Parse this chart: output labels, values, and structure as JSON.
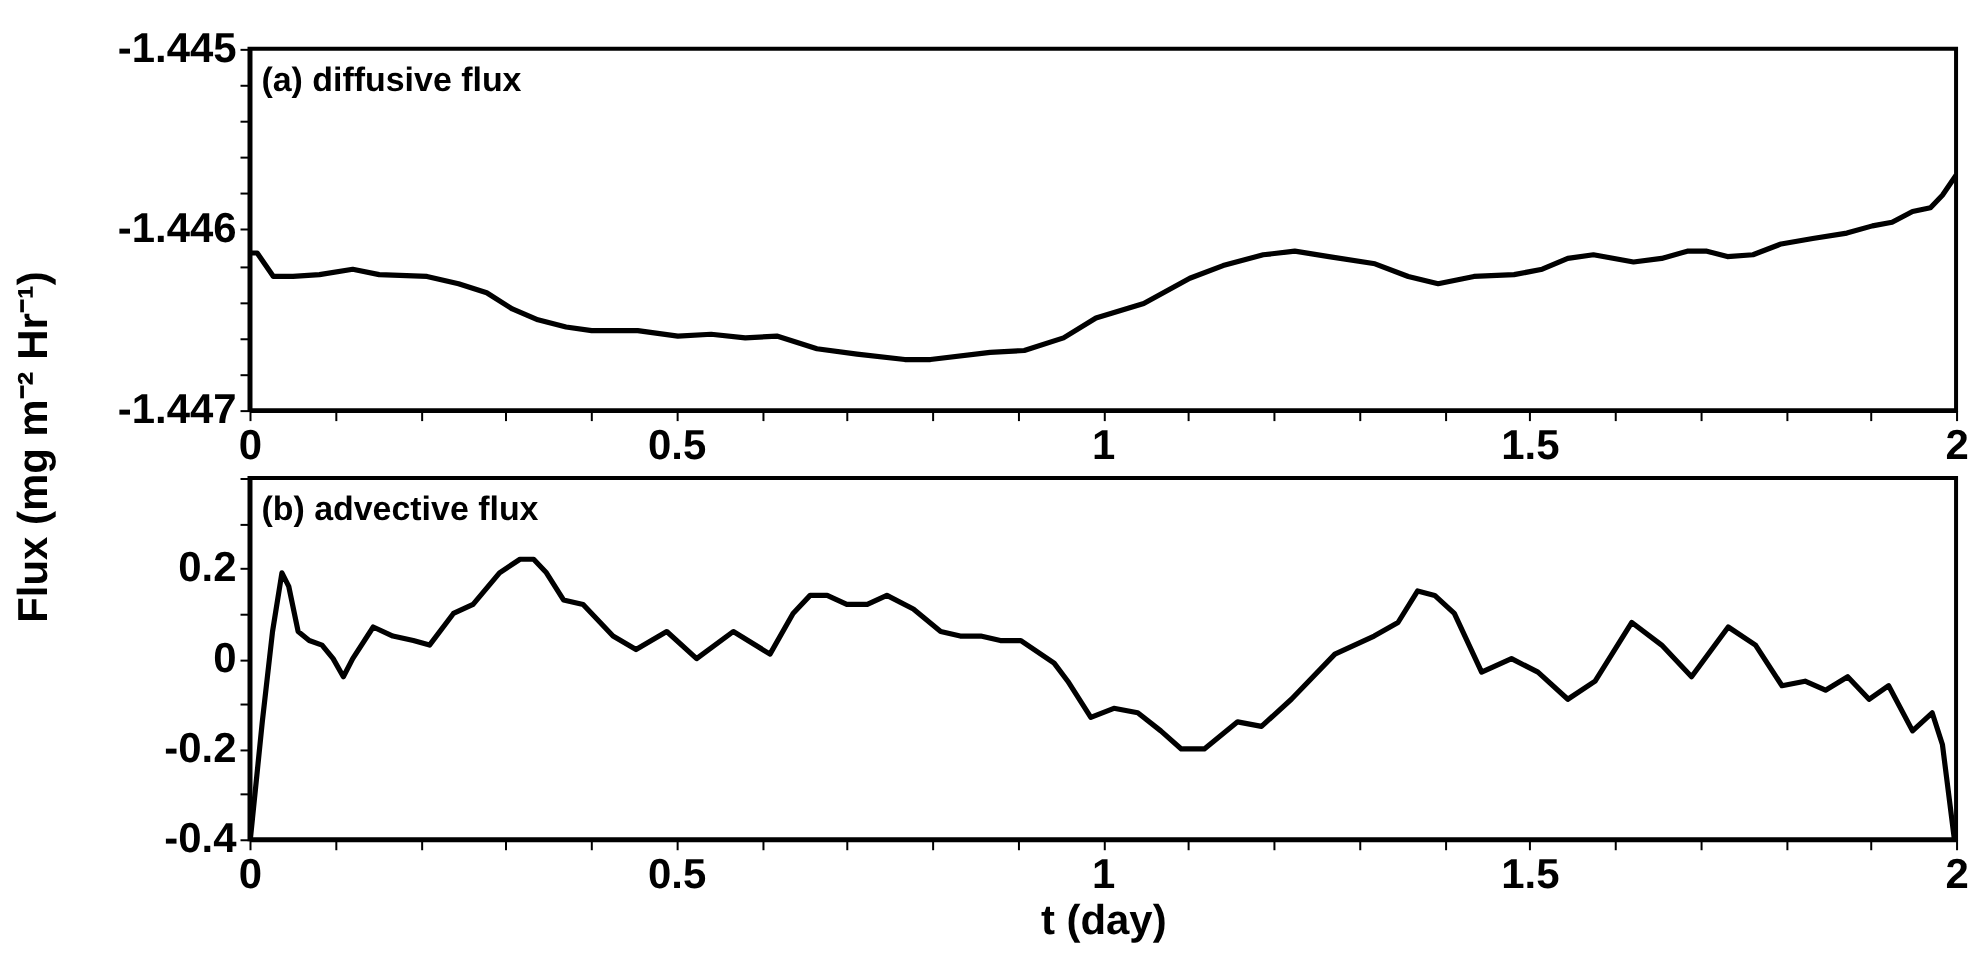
{
  "chart_data": [
    {
      "type": "line",
      "ylabel": "Flux (mg m⁻² Hr⁻¹)",
      "annotations": [
        "(a) diffusive flux"
      ],
      "xlim": [
        0,
        2
      ],
      "ylim": [
        -1.447,
        -1.445
      ],
      "xticks": [
        0,
        {
          "value": 0.1,
          "label": null
        },
        {
          "value": 0.2,
          "label": null
        },
        {
          "value": 0.3,
          "label": null
        },
        {
          "value": 0.4,
          "label": null
        },
        0.5,
        {
          "value": 0.6,
          "label": null
        },
        {
          "value": 0.7,
          "label": null
        },
        {
          "value": 0.8,
          "label": null
        },
        {
          "value": 0.9,
          "label": null
        },
        1,
        {
          "value": 1.1,
          "label": null
        },
        {
          "value": 1.2,
          "label": null
        },
        {
          "value": 1.3,
          "label": null
        },
        {
          "value": 1.4,
          "label": null
        },
        1.5,
        {
          "value": 1.6,
          "label": null
        },
        {
          "value": 1.7,
          "label": null
        },
        {
          "value": 1.8,
          "label": null
        },
        {
          "value": 1.9,
          "label": null
        },
        2
      ],
      "yticks": [
        -1.447,
        {
          "value": -1.4468,
          "label": null
        },
        {
          "value": -1.4466,
          "label": null
        },
        {
          "value": -1.4464,
          "label": null
        },
        {
          "value": -1.4462,
          "label": null
        },
        -1.446,
        {
          "value": -1.4458,
          "label": null
        },
        {
          "value": -1.4456,
          "label": null
        },
        {
          "value": -1.4454,
          "label": null
        },
        {
          "value": -1.4452,
          "label": null
        },
        -1.445
      ],
      "x": [
        0,
        0.009,
        0.028,
        0.051,
        0.082,
        0.121,
        0.152,
        0.208,
        0.245,
        0.278,
        0.308,
        0.338,
        0.371,
        0.401,
        0.455,
        0.502,
        0.541,
        0.581,
        0.618,
        0.665,
        0.712,
        0.768,
        0.798,
        0.868,
        0.908,
        0.954,
        0.992,
        1.048,
        1.102,
        1.141,
        1.188,
        1.225,
        1.265,
        1.319,
        1.358,
        1.393,
        1.435,
        1.482,
        1.515,
        1.545,
        1.575,
        1.622,
        1.655,
        1.685,
        1.708,
        1.732,
        1.762,
        1.795,
        1.832,
        1.872,
        1.902,
        1.925,
        1.949,
        1.97,
        1.984,
        2.0
      ],
      "series": [
        {
          "color": "#000000",
          "values": [
            -1.44613,
            -1.44613,
            -1.44626,
            -1.44626,
            -1.44625,
            -1.44622,
            -1.44625,
            -1.44626,
            -1.4463,
            -1.44635,
            -1.44644,
            -1.4465,
            -1.44654,
            -1.44656,
            -1.44656,
            -1.44659,
            -1.44658,
            -1.4466,
            -1.44659,
            -1.44666,
            -1.44669,
            -1.44672,
            -1.44672,
            -1.44668,
            -1.44667,
            -1.4466,
            -1.44649,
            -1.44641,
            -1.44627,
            -1.4462,
            -1.44614,
            -1.44612,
            -1.44615,
            -1.44619,
            -1.44626,
            -1.4463,
            -1.44626,
            -1.44625,
            -1.44622,
            -1.44616,
            -1.44614,
            -1.44618,
            -1.44616,
            -1.44612,
            -1.44612,
            -1.44615,
            -1.44614,
            -1.44608,
            -1.44605,
            -1.44602,
            -1.44598,
            -1.44596,
            -1.4459,
            -1.44588,
            -1.44581,
            -1.4457
          ]
        }
      ]
    },
    {
      "type": "line",
      "xlabel": "t (day)",
      "annotations": [
        "(b) advective flux"
      ],
      "xlim": [
        0,
        2
      ],
      "ylim": [
        -0.4,
        0.4
      ],
      "xticks": [
        0,
        {
          "value": 0.1,
          "label": null
        },
        {
          "value": 0.2,
          "label": null
        },
        {
          "value": 0.3,
          "label": null
        },
        {
          "value": 0.4,
          "label": null
        },
        0.5,
        {
          "value": 0.6,
          "label": null
        },
        {
          "value": 0.7,
          "label": null
        },
        {
          "value": 0.8,
          "label": null
        },
        {
          "value": 0.9,
          "label": null
        },
        1,
        {
          "value": 1.1,
          "label": null
        },
        {
          "value": 1.2,
          "label": null
        },
        {
          "value": 1.3,
          "label": null
        },
        {
          "value": 1.4,
          "label": null
        },
        1.5,
        {
          "value": 1.6,
          "label": null
        },
        {
          "value": 1.7,
          "label": null
        },
        {
          "value": 1.8,
          "label": null
        },
        {
          "value": 1.9,
          "label": null
        },
        2
      ],
      "yticks": [
        -0.4,
        {
          "value": -0.3,
          "label": null
        },
        -0.2,
        {
          "value": -0.1,
          "label": null
        },
        0,
        {
          "value": 0.1,
          "label": null
        },
        0.2,
        {
          "value": 0.3,
          "label": null
        },
        {
          "value": 0.4,
          "label": null
        }
      ],
      "x": [
        0.001,
        0.015,
        0.027,
        0.038,
        0.046,
        0.057,
        0.07,
        0.085,
        0.098,
        0.11,
        0.121,
        0.145,
        0.168,
        0.192,
        0.211,
        0.239,
        0.262,
        0.293,
        0.317,
        0.333,
        0.348,
        0.368,
        0.391,
        0.426,
        0.453,
        0.489,
        0.524,
        0.567,
        0.61,
        0.637,
        0.657,
        0.677,
        0.7,
        0.724,
        0.747,
        0.778,
        0.81,
        0.833,
        0.857,
        0.88,
        0.904,
        0.943,
        0.959,
        0.986,
        1.013,
        1.041,
        1.068,
        1.092,
        1.119,
        1.158,
        1.186,
        1.221,
        1.272,
        1.318,
        1.346,
        1.369,
        1.389,
        1.412,
        1.444,
        1.479,
        1.51,
        1.545,
        1.577,
        1.62,
        1.655,
        1.69,
        1.733,
        1.765,
        1.796,
        1.823,
        1.847,
        1.873,
        1.898,
        1.921,
        1.949,
        1.972,
        1.984,
        1.998
      ],
      "series": [
        {
          "color": "#000000",
          "values": [
            -0.4,
            -0.14,
            0.06,
            0.19,
            0.16,
            0.06,
            0.04,
            0.03,
            0.0,
            -0.04,
            0.0,
            0.07,
            0.05,
            0.04,
            0.03,
            0.1,
            0.12,
            0.19,
            0.22,
            0.22,
            0.19,
            0.13,
            0.12,
            0.05,
            0.02,
            0.06,
            0.0,
            0.06,
            0.01,
            0.1,
            0.14,
            0.14,
            0.12,
            0.12,
            0.14,
            0.11,
            0.06,
            0.05,
            0.05,
            0.04,
            0.04,
            -0.01,
            -0.05,
            -0.13,
            -0.11,
            -0.12,
            -0.16,
            -0.2,
            -0.2,
            -0.14,
            -0.15,
            -0.09,
            0.01,
            0.05,
            0.08,
            0.15,
            0.14,
            0.1,
            -0.03,
            0.0,
            -0.03,
            -0.09,
            -0.05,
            0.08,
            0.03,
            -0.04,
            0.07,
            0.03,
            -0.06,
            -0.05,
            -0.07,
            -0.04,
            -0.09,
            -0.06,
            -0.16,
            -0.12,
            -0.19,
            -0.4
          ]
        }
      ]
    }
  ]
}
